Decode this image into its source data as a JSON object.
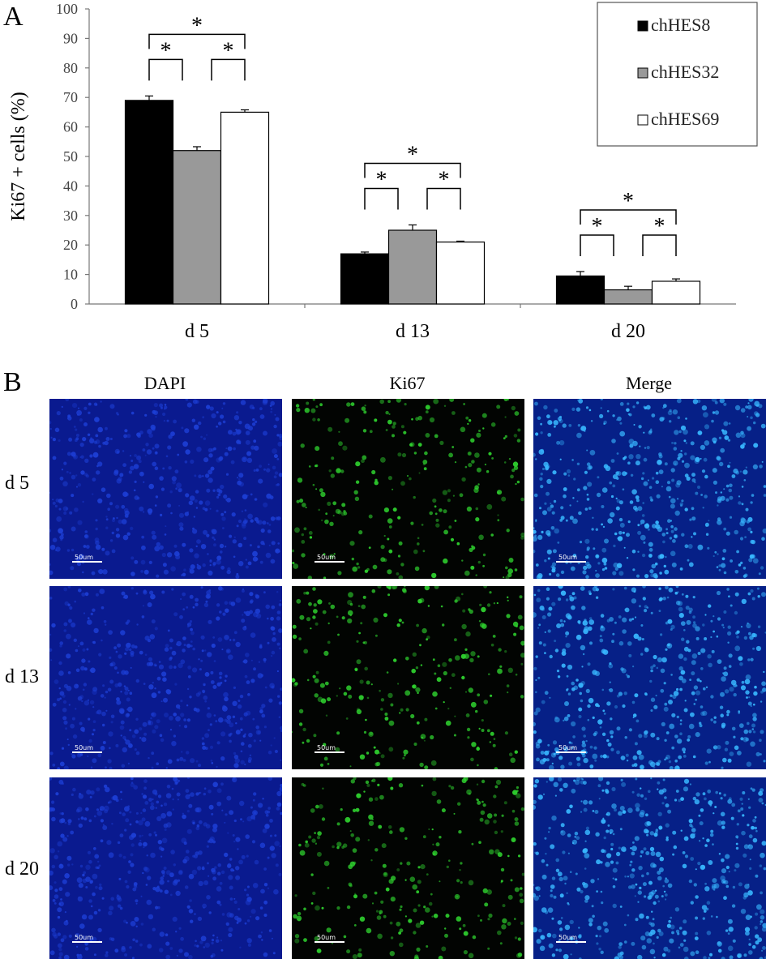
{
  "panel_a_label": "A",
  "panel_b_label": "B",
  "chart_data": {
    "type": "bar",
    "title": "",
    "xlabel": "",
    "ylabel": "Ki67 + cells (%)",
    "ylim": [
      0,
      100
    ],
    "yticks": [
      0,
      10,
      20,
      30,
      40,
      50,
      60,
      70,
      80,
      90,
      100
    ],
    "categories": [
      "d 5",
      "d 13",
      "d 20"
    ],
    "series": [
      {
        "name": "chHES8",
        "values": [
          69,
          17,
          9.5
        ],
        "errors": [
          1.5,
          0.6,
          1.5
        ],
        "color": "#000000"
      },
      {
        "name": "chHES32",
        "values": [
          52,
          25,
          4.8
        ],
        "errors": [
          1.3,
          1.8,
          1.2
        ],
        "color": "#999999"
      },
      {
        "name": "chHES69",
        "values": [
          65,
          21,
          7.7
        ],
        "errors": [
          0.8,
          0.3,
          0.8
        ],
        "color": "#ffffff"
      }
    ],
    "significance_marker": "*",
    "significance": [
      {
        "category": "d 5",
        "pairs": [
          [
            0,
            1
          ],
          [
            1,
            2
          ],
          [
            0,
            2
          ]
        ]
      },
      {
        "category": "d 13",
        "pairs": [
          [
            0,
            1
          ],
          [
            1,
            2
          ],
          [
            0,
            2
          ]
        ]
      },
      {
        "category": "d 20",
        "pairs": [
          [
            0,
            1
          ],
          [
            1,
            2
          ],
          [
            0,
            2
          ]
        ]
      }
    ],
    "legend_position": "top-right",
    "grid": false
  },
  "panel_b": {
    "columns": [
      "DAPI",
      "Ki67",
      "Merge"
    ],
    "rows": [
      "d 5",
      "d 13",
      "d 20"
    ],
    "scale_bar": "50um",
    "channel_colors": {
      "DAPI": "#1d3fd6",
      "Ki67": "#2fd42f",
      "Merge": "#38b7ff"
    }
  }
}
